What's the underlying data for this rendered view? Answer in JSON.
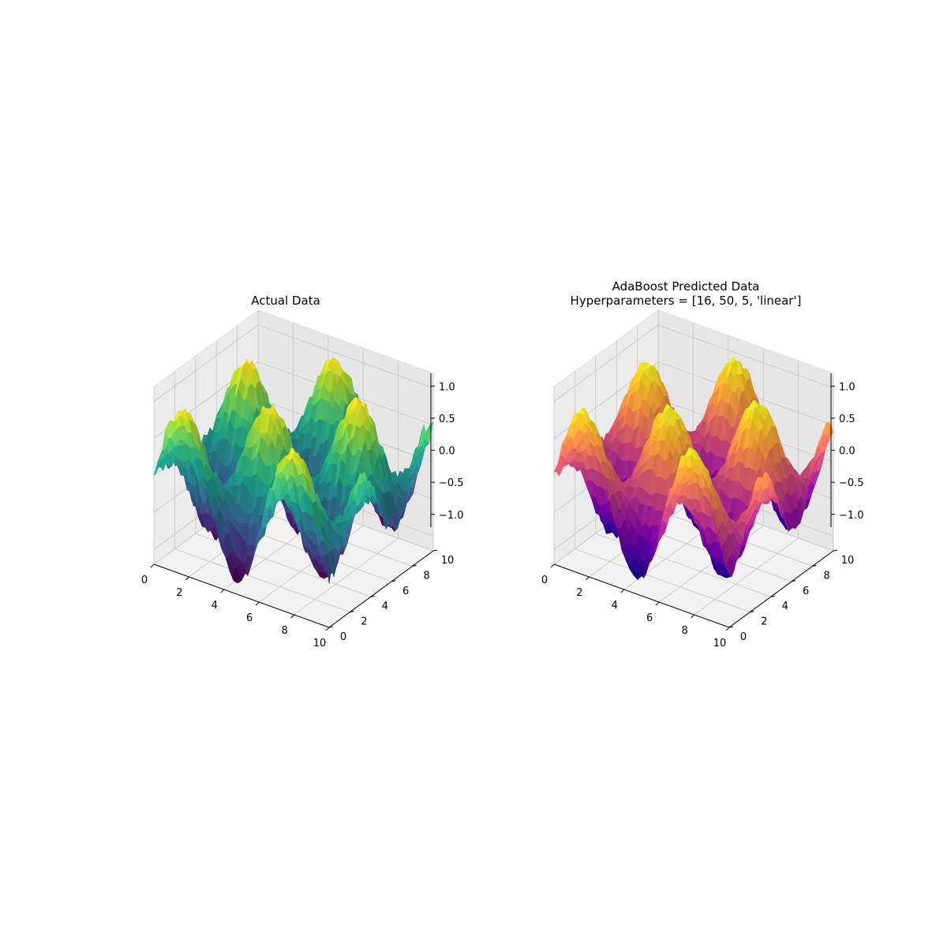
{
  "chart_data": [
    {
      "type": "surface3d",
      "title": "Actual Data",
      "xlabel": "",
      "ylabel": "",
      "zlabel": "",
      "x_range": [
        0,
        10
      ],
      "y_range": [
        0,
        10
      ],
      "z_range": [
        -1.2,
        1.2
      ],
      "x_ticks": [
        0,
        2,
        4,
        6,
        8,
        10
      ],
      "y_ticks": [
        0,
        2,
        4,
        6,
        8,
        10
      ],
      "z_ticks": [
        -1.0,
        -0.5,
        0.0,
        0.5,
        1.0
      ],
      "x_tick_labels": [
        "0",
        "2",
        "4",
        "6",
        "8",
        "10"
      ],
      "y_tick_labels": [
        "0",
        "2",
        "4",
        "6",
        "8",
        "10"
      ],
      "z_tick_labels": [
        "−1.0",
        "−0.5",
        "0.0",
        "0.5",
        "1.0"
      ],
      "function": "sin(x) * cos(y) + noise",
      "z_min": -1.0,
      "z_max": 1.0,
      "colormap": "viridis",
      "grid": true
    },
    {
      "type": "surface3d",
      "title": "AdaBoost Predicted Data\nHyperparameters = [16, 50, 5, 'linear']",
      "xlabel": "",
      "ylabel": "",
      "zlabel": "",
      "x_range": [
        0,
        10
      ],
      "y_range": [
        0,
        10
      ],
      "z_range": [
        -1.2,
        1.2
      ],
      "x_ticks": [
        0,
        2,
        4,
        6,
        8,
        10
      ],
      "y_ticks": [
        0,
        2,
        4,
        6,
        8,
        10
      ],
      "z_ticks": [
        -1.0,
        -0.5,
        0.0,
        0.5,
        1.0
      ],
      "x_tick_labels": [
        "0",
        "2",
        "4",
        "6",
        "8",
        "10"
      ],
      "y_tick_labels": [
        "0",
        "2",
        "4",
        "6",
        "8",
        "10"
      ],
      "z_tick_labels": [
        "−1.0",
        "−0.5",
        "0.0",
        "0.5",
        "1.0"
      ],
      "function": "sin(x) * cos(y) (model prediction)",
      "z_min": -1.0,
      "z_max": 1.0,
      "colormap": "plasma",
      "grid": true
    }
  ]
}
